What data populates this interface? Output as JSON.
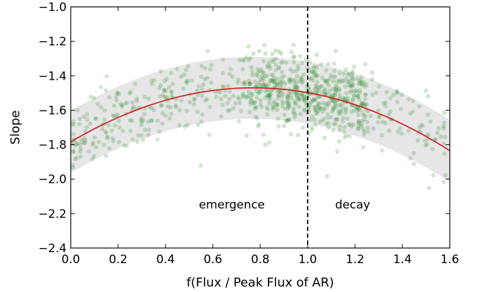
{
  "chart_data": {
    "type": "scatter",
    "title": "",
    "xlabel": "f(Flux / Peak Flux of AR)",
    "ylabel": "Slope",
    "xlim": [
      0.0,
      1.6
    ],
    "ylim": [
      -2.4,
      -1.0
    ],
    "xticks": [
      0.0,
      0.2,
      0.4,
      0.6,
      0.8,
      1.0,
      1.2,
      1.4,
      1.6
    ],
    "xtick_labels": [
      "0.0",
      "0.2",
      "0.4",
      "0.6",
      "0.8",
      "1.0",
      "1.2",
      "1.4",
      "1.6"
    ],
    "yticks": [
      -1.0,
      -1.2,
      -1.4,
      -1.6,
      -1.8,
      -2.0,
      -2.2,
      -2.4
    ],
    "ytick_labels": [
      "−1.0",
      "−1.2",
      "−1.4",
      "−1.6",
      "−1.8",
      "−2.0",
      "−2.2",
      "−2.4"
    ],
    "grid": false,
    "fit_curve": {
      "type": "quadratic",
      "vertex_x": 0.77,
      "vertex_y": -1.47,
      "curvature": -0.53,
      "color": "#d62728"
    },
    "band": {
      "half_width": 0.18,
      "color": "#e6e6e6"
    },
    "divider": {
      "x": 1.0,
      "style": "dashed",
      "color": "#000000"
    },
    "annotations": [
      {
        "text": "emergence",
        "x": 0.68,
        "y": -2.17
      },
      {
        "text": "decay",
        "x": 1.19,
        "y": -2.17
      }
    ],
    "scatter_color": "#2e8b2e",
    "scatter_opacity": 0.22,
    "scatter_summary": {
      "approx_count": 900,
      "x_range": [
        0.0,
        1.6
      ],
      "y_range": [
        -2.2,
        -1.22
      ],
      "trend": "scatter follows the fitted curve within the band, densest near x = 0.8–1.2"
    }
  }
}
